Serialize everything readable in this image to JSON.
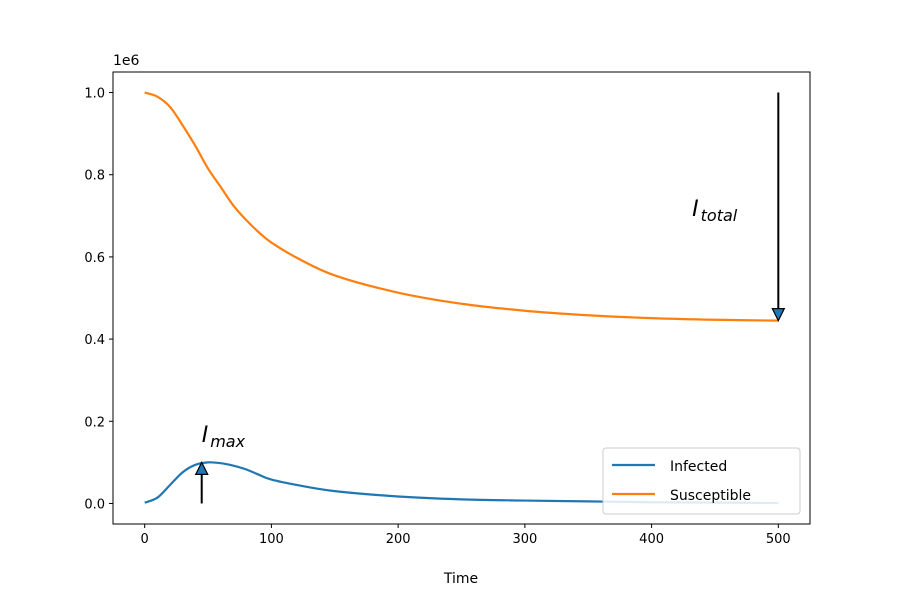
{
  "chart_data": {
    "type": "line",
    "title": "",
    "xlabel": "Time",
    "ylabel": "",
    "y_offset_label": "1e6",
    "xlim": [
      -25,
      525
    ],
    "ylim": [
      -0.05,
      1.05
    ],
    "xticks": [
      0,
      100,
      200,
      300,
      400,
      500
    ],
    "xtick_labels": [
      "0",
      "100",
      "200",
      "300",
      "400",
      "500"
    ],
    "yticks": [
      0.0,
      0.2,
      0.4,
      0.6,
      0.8,
      1.0
    ],
    "ytick_labels": [
      "0.0",
      "0.2",
      "0.4",
      "0.6",
      "0.8",
      "1.0"
    ],
    "grid": false,
    "legend_position": "lower-right",
    "series": [
      {
        "name": "Infected",
        "color": "#1f77b4",
        "x": [
          0,
          10,
          20,
          30,
          40,
          50,
          60,
          70,
          80,
          90,
          100,
          120,
          150,
          200,
          250,
          300,
          350,
          400,
          450,
          500
        ],
        "y": [
          0.002,
          0.014,
          0.045,
          0.076,
          0.094,
          0.1,
          0.098,
          0.092,
          0.083,
          0.07,
          0.058,
          0.045,
          0.03,
          0.017,
          0.01,
          0.007,
          0.005,
          0.003,
          0.002,
          0.001
        ]
      },
      {
        "name": "Susceptible",
        "color": "#ff7f0e",
        "x": [
          0,
          10,
          20,
          30,
          40,
          50,
          60,
          70,
          80,
          90,
          100,
          120,
          150,
          200,
          250,
          300,
          350,
          400,
          450,
          500
        ],
        "y": [
          1.0,
          0.99,
          0.965,
          0.92,
          0.87,
          0.815,
          0.77,
          0.725,
          0.69,
          0.66,
          0.635,
          0.598,
          0.555,
          0.513,
          0.486,
          0.469,
          0.458,
          0.451,
          0.447,
          0.445
        ]
      }
    ],
    "annotations": [
      {
        "label": "I",
        "subscript": "max",
        "text_at": [
          45,
          0.15
        ],
        "arrow_from": [
          45,
          0.0
        ],
        "arrow_to": [
          45,
          0.1
        ]
      },
      {
        "label": "I",
        "subscript": "total",
        "text_at": [
          432,
          0.7
        ],
        "arrow_from": [
          500,
          1.0
        ],
        "arrow_to": [
          500,
          0.445
        ]
      }
    ]
  }
}
